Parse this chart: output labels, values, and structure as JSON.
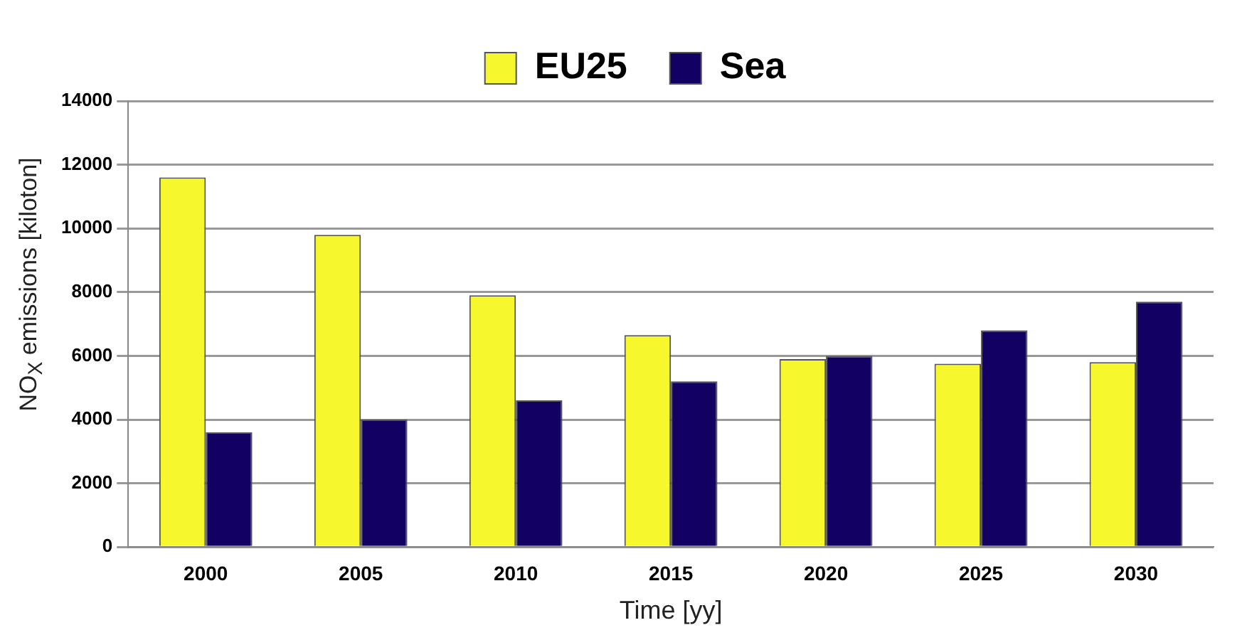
{
  "chart_data": {
    "type": "bar",
    "xlabel": "Time [yy]",
    "ylabel": "NO$_{X}$ emissions [kiloton]",
    "categories": [
      "2000",
      "2005",
      "2010",
      "2015",
      "2020",
      "2025",
      "2030"
    ],
    "series": [
      {
        "name": "EU25",
        "color": "#f7f72e",
        "values": [
          11600,
          9800,
          7900,
          6650,
          5900,
          5750,
          5800
        ]
      },
      {
        "name": "Sea",
        "color": "#120063",
        "values": [
          3600,
          4000,
          4600,
          5200,
          6000,
          6800,
          7700
        ]
      }
    ],
    "ylim": [
      0,
      14000
    ],
    "yticks": [
      0,
      2000,
      4000,
      6000,
      8000,
      10000,
      12000,
      14000
    ],
    "grid": "y",
    "legend": "top"
  }
}
